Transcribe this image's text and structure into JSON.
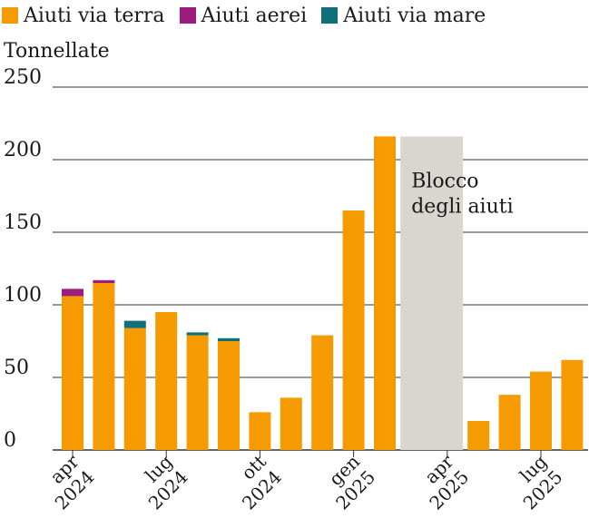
{
  "chart_data": {
    "type": "bar",
    "stacked": true,
    "ylabel": "Tonnellate",
    "ylim": [
      0,
      250
    ],
    "yticks": [
      0,
      50,
      100,
      150,
      200,
      250
    ],
    "grid": true,
    "legend_position": "top-left",
    "categories": [
      "apr 2024",
      "mag 2024",
      "giu 2024",
      "lug 2024",
      "ago 2024",
      "set 2024",
      "ott 2024",
      "nov 2024",
      "dic 2024",
      "gen 2025",
      "feb 2025",
      "mar 2025",
      "apr 2025",
      "mag 2025",
      "giu 2025",
      "lug 2025",
      "ago 2025"
    ],
    "x_tick_labels": [
      {
        "index": 0,
        "month": "apr",
        "year": "2024"
      },
      {
        "index": 3,
        "month": "lug",
        "year": "2024"
      },
      {
        "index": 6,
        "month": "ott",
        "year": "2024"
      },
      {
        "index": 9,
        "month": "gen",
        "year": "2025"
      },
      {
        "index": 12,
        "month": "apr",
        "year": "2025"
      },
      {
        "index": 15,
        "month": "lug",
        "year": "2025"
      }
    ],
    "series": [
      {
        "name": "Aiuti via terra",
        "color": "#f59a00",
        "values": [
          106,
          115,
          84,
          95,
          79,
          75,
          26,
          36,
          79,
          165,
          216,
          null,
          null,
          20,
          38,
          54,
          62
        ]
      },
      {
        "name": "Aiuti aerei",
        "color": "#9c1d7e",
        "values": [
          5,
          2,
          0,
          0,
          0,
          0,
          0,
          0,
          0,
          0,
          0,
          null,
          null,
          0,
          0,
          0,
          0
        ]
      },
      {
        "name": "Aiuti via mare",
        "color": "#0f6f7a",
        "values": [
          0,
          0,
          5,
          0,
          2,
          2,
          0,
          0,
          0,
          0,
          0,
          null,
          null,
          0,
          0,
          0,
          0
        ]
      }
    ],
    "annotation": {
      "label_line1": "Blocco",
      "label_line2": "degli aiuti",
      "start_index": 11,
      "end_index": 12,
      "top_value": 216,
      "color": "#d9d6d0"
    }
  }
}
